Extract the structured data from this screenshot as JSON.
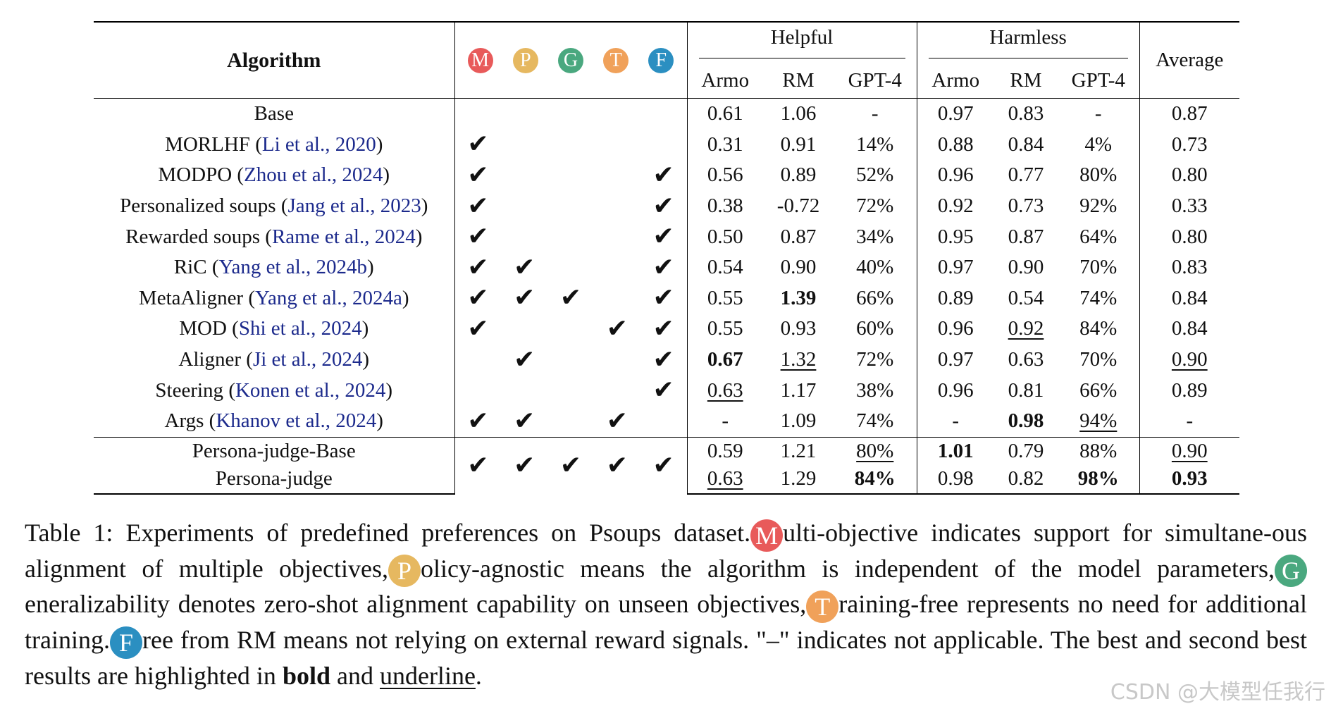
{
  "header": {
    "algorithm": "Algorithm",
    "helpful": "Helpful",
    "harmless": "Harmless",
    "average": "Average",
    "sub": [
      "Armo",
      "RM",
      "GPT-4",
      "Armo",
      "RM",
      "GPT-4"
    ],
    "badges": [
      {
        "letter": "M",
        "color": "#e85a5a"
      },
      {
        "letter": "P",
        "color": "#e6b860"
      },
      {
        "letter": "G",
        "color": "#4aa87f"
      },
      {
        "letter": "T",
        "color": "#f0a15a"
      },
      {
        "letter": "F",
        "color": "#2b8fc1"
      }
    ]
  },
  "check_glyph": "✔",
  "rows": [
    {
      "name": "Base",
      "cite": "",
      "checks": [
        0,
        0,
        0,
        0,
        0
      ],
      "cells": [
        {
          "v": "0.61"
        },
        {
          "v": "1.06"
        },
        {
          "v": "-"
        },
        {
          "v": "0.97"
        },
        {
          "v": "0.83"
        },
        {
          "v": "-"
        },
        {
          "v": "0.87"
        }
      ]
    },
    {
      "name": "MORLHF",
      "cite": "Li et al., 2020",
      "checks": [
        1,
        0,
        0,
        0,
        0
      ],
      "cells": [
        {
          "v": "0.31"
        },
        {
          "v": "0.91"
        },
        {
          "v": "14%"
        },
        {
          "v": "0.88"
        },
        {
          "v": "0.84"
        },
        {
          "v": "4%"
        },
        {
          "v": "0.73"
        }
      ]
    },
    {
      "name": "MODPO",
      "cite": "Zhou et al., 2024",
      "checks": [
        1,
        0,
        0,
        0,
        1
      ],
      "cells": [
        {
          "v": "0.56"
        },
        {
          "v": "0.89"
        },
        {
          "v": "52%"
        },
        {
          "v": "0.96"
        },
        {
          "v": "0.77"
        },
        {
          "v": "80%"
        },
        {
          "v": "0.80"
        }
      ]
    },
    {
      "name": "Personalized soups",
      "cite": "Jang et al., 2023",
      "checks": [
        1,
        0,
        0,
        0,
        1
      ],
      "cells": [
        {
          "v": "0.38"
        },
        {
          "v": "-0.72"
        },
        {
          "v": "72%"
        },
        {
          "v": "0.92"
        },
        {
          "v": "0.73"
        },
        {
          "v": "92%"
        },
        {
          "v": "0.33"
        }
      ]
    },
    {
      "name": "Rewarded soups",
      "cite": "Rame et al., 2024",
      "checks": [
        1,
        0,
        0,
        0,
        1
      ],
      "cells": [
        {
          "v": "0.50"
        },
        {
          "v": "0.87"
        },
        {
          "v": "34%"
        },
        {
          "v": "0.95"
        },
        {
          "v": "0.87"
        },
        {
          "v": "64%"
        },
        {
          "v": "0.80"
        }
      ]
    },
    {
      "name": "RiC",
      "cite": "Yang et al., 2024b",
      "checks": [
        1,
        1,
        0,
        0,
        1
      ],
      "cells": [
        {
          "v": "0.54"
        },
        {
          "v": "0.90"
        },
        {
          "v": "40%"
        },
        {
          "v": "0.97"
        },
        {
          "v": "0.90"
        },
        {
          "v": "70%"
        },
        {
          "v": "0.83"
        }
      ]
    },
    {
      "name": "MetaAligner",
      "cite": "Yang et al., 2024a",
      "checks": [
        1,
        1,
        1,
        0,
        1
      ],
      "cells": [
        {
          "v": "0.55"
        },
        {
          "v": "1.39",
          "s": "b"
        },
        {
          "v": "66%"
        },
        {
          "v": "0.89"
        },
        {
          "v": "0.54"
        },
        {
          "v": "74%"
        },
        {
          "v": "0.84"
        }
      ]
    },
    {
      "name": "MOD",
      "cite": "Shi et al., 2024",
      "checks": [
        1,
        0,
        0,
        1,
        1
      ],
      "cells": [
        {
          "v": "0.55"
        },
        {
          "v": "0.93"
        },
        {
          "v": "60%"
        },
        {
          "v": "0.96"
        },
        {
          "v": "0.92",
          "s": "u"
        },
        {
          "v": "84%"
        },
        {
          "v": "0.84"
        }
      ]
    },
    {
      "name": "Aligner",
      "cite": "Ji et al., 2024",
      "checks": [
        0,
        1,
        0,
        0,
        1
      ],
      "cells": [
        {
          "v": "0.67",
          "s": "b"
        },
        {
          "v": "1.32",
          "s": "u"
        },
        {
          "v": "72%"
        },
        {
          "v": "0.97"
        },
        {
          "v": "0.63"
        },
        {
          "v": "70%"
        },
        {
          "v": "0.90",
          "s": "u"
        }
      ]
    },
    {
      "name": "Steering",
      "cite": "Konen et al., 2024",
      "checks": [
        0,
        0,
        0,
        0,
        1
      ],
      "cells": [
        {
          "v": "0.63",
          "s": "u"
        },
        {
          "v": "1.17"
        },
        {
          "v": "38%"
        },
        {
          "v": "0.96"
        },
        {
          "v": "0.81"
        },
        {
          "v": "66%"
        },
        {
          "v": "0.89"
        }
      ]
    },
    {
      "name": "Args",
      "cite": "Khanov et al., 2024",
      "checks": [
        1,
        1,
        0,
        1,
        0
      ],
      "cells": [
        {
          "v": "-"
        },
        {
          "v": "1.09"
        },
        {
          "v": "74%"
        },
        {
          "v": "-"
        },
        {
          "v": "0.98",
          "s": "b"
        },
        {
          "v": "94%",
          "s": "u"
        },
        {
          "v": "-"
        }
      ]
    }
  ],
  "ours_checks": [
    1,
    1,
    1,
    1,
    1
  ],
  "ours": [
    {
      "name": "Persona-judge-Base",
      "cells": [
        {
          "v": "0.59"
        },
        {
          "v": "1.21"
        },
        {
          "v": "80%",
          "s": "u"
        },
        {
          "v": "1.01",
          "s": "b"
        },
        {
          "v": "0.79"
        },
        {
          "v": "88%"
        },
        {
          "v": "0.90",
          "s": "u"
        }
      ]
    },
    {
      "name": "Persona-judge",
      "cells": [
        {
          "v": "0.63",
          "s": "u"
        },
        {
          "v": "1.29"
        },
        {
          "v": "84%",
          "s": "b"
        },
        {
          "v": "0.98"
        },
        {
          "v": "0.82"
        },
        {
          "v": "98%",
          "s": "b"
        },
        {
          "v": "0.93",
          "s": "b"
        }
      ]
    }
  ],
  "caption": {
    "prefix": "Table 1: Experiments of predefined preferences on Psoups dataset.",
    "m_text": "ulti-objective indicates support for simultane-ous alignment of multiple objectives,",
    "p_text": "olicy-agnostic means the algorithm is independent of the model parameters,",
    "g_text": "eneralizability denotes zero-shot alignment capability on unseen objectives,",
    "t_text": "raining-free represents no need for additional training.",
    "f_text": "ree from RM means not relying on external reward signals. \"–\" indicates not applicable. The best and second best results are highlighted in",
    "bold_word": "bold",
    "and_word": "and",
    "underline_word": "underline",
    "end": "."
  },
  "watermark": "CSDN @大模型任我行"
}
